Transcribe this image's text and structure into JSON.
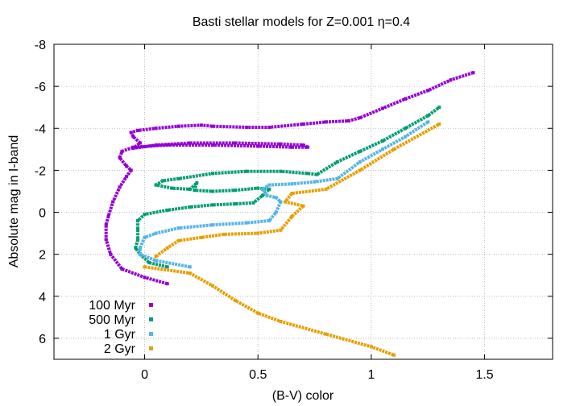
{
  "chart_data": {
    "type": "scatter",
    "title": "Basti stellar models for Z=0.001 η=0.4",
    "xlabel": "(B-V) color",
    "ylabel": "Absolute mag in I-band",
    "xlim": [
      -0.4,
      1.8
    ],
    "ylim": [
      7,
      -8
    ],
    "y_inverted": true,
    "grid": true,
    "legend_position": "bottom-left",
    "x_ticks": [
      "0",
      "0.5",
      "1",
      "1.5"
    ],
    "x_tick_values": [
      0,
      0.5,
      1,
      1.5
    ],
    "y_ticks": [
      "-8",
      "-6",
      "-4",
      "-2",
      "0",
      "2",
      "4",
      "6"
    ],
    "y_tick_values": [
      -8,
      -6,
      -4,
      -2,
      0,
      2,
      4,
      6
    ],
    "series": [
      {
        "name": "100 Myr",
        "color": "#9400d3",
        "segments": [
          [
            [
              0.1,
              3.4
            ],
            [
              0.0,
              3.1
            ],
            [
              -0.1,
              2.7
            ],
            [
              -0.15,
              2.0
            ],
            [
              -0.17,
              1.3
            ],
            [
              -0.17,
              0.6
            ],
            [
              -0.16,
              0.2
            ],
            [
              -0.14,
              -0.5
            ],
            [
              -0.11,
              -1.2
            ],
            [
              -0.08,
              -1.7
            ],
            [
              -0.06,
              -2.0
            ],
            [
              -0.08,
              -2.2
            ],
            [
              -0.11,
              -2.6
            ],
            [
              -0.1,
              -2.9
            ],
            [
              -0.05,
              -3.1
            ],
            [
              0.1,
              -3.2
            ],
            [
              0.3,
              -3.2
            ],
            [
              0.5,
              -3.15
            ],
            [
              0.65,
              -3.1
            ],
            [
              0.72,
              -3.1
            ],
            [
              0.7,
              -3.2
            ],
            [
              0.6,
              -3.25
            ],
            [
              0.4,
              -3.3
            ],
            [
              0.2,
              -3.3
            ],
            [
              0.05,
              -3.2
            ],
            [
              -0.05,
              -3.05
            ],
            [
              -0.02,
              -3.3
            ],
            [
              -0.05,
              -3.6
            ],
            [
              -0.06,
              -3.8
            ],
            [
              -0.03,
              -3.9
            ],
            [
              0.05,
              -4.0
            ],
            [
              0.15,
              -4.1
            ],
            [
              0.25,
              -4.15
            ],
            [
              0.3,
              -4.1
            ],
            [
              0.45,
              -4.05
            ],
            [
              0.55,
              -4.05
            ],
            [
              0.7,
              -4.2
            ],
            [
              0.8,
              -4.3
            ],
            [
              0.9,
              -4.35
            ],
            [
              0.95,
              -4.5
            ],
            [
              1.05,
              -4.95
            ],
            [
              1.15,
              -5.4
            ],
            [
              1.25,
              -5.8
            ],
            [
              1.35,
              -6.3
            ],
            [
              1.45,
              -6.65
            ]
          ]
        ]
      },
      {
        "name": "500 Myr",
        "color": "#009e73",
        "segments": [
          [
            [
              0.1,
              2.6
            ],
            [
              0.02,
              2.4
            ],
            [
              -0.02,
              2.0
            ],
            [
              -0.04,
              1.7
            ],
            [
              -0.03,
              1.3
            ],
            [
              -0.03,
              0.8
            ],
            [
              -0.03,
              0.4
            ],
            [
              0.0,
              0.1
            ],
            [
              0.1,
              -0.1
            ],
            [
              0.2,
              -0.25
            ],
            [
              0.3,
              -0.35
            ],
            [
              0.4,
              -0.4
            ],
            [
              0.48,
              -0.45
            ],
            [
              0.52,
              -0.8
            ],
            [
              0.55,
              -1.1
            ],
            [
              0.5,
              -1.15
            ],
            [
              0.4,
              -1.05
            ],
            [
              0.3,
              -1.0
            ],
            [
              0.22,
              -1.05
            ],
            [
              0.23,
              -1.4
            ],
            [
              0.2,
              -1.1
            ],
            [
              0.12,
              -1.15
            ],
            [
              0.05,
              -1.3
            ],
            [
              0.08,
              -1.5
            ],
            [
              0.15,
              -1.6
            ],
            [
              0.3,
              -1.85
            ],
            [
              0.45,
              -1.95
            ],
            [
              0.6,
              -1.95
            ],
            [
              0.72,
              -1.85
            ],
            [
              0.76,
              -1.8
            ],
            [
              0.85,
              -2.4
            ],
            [
              0.95,
              -2.9
            ],
            [
              1.05,
              -3.4
            ],
            [
              1.15,
              -4.0
            ],
            [
              1.25,
              -4.6
            ],
            [
              1.3,
              -5.0
            ]
          ]
        ]
      },
      {
        "name": "1 Gyr",
        "color": "#56b4e9",
        "segments": [
          [
            [
              0.2,
              2.6
            ],
            [
              0.05,
              2.3
            ],
            [
              -0.02,
              2.0
            ],
            [
              -0.02,
              1.7
            ],
            [
              0.0,
              1.2
            ],
            [
              0.05,
              1.0
            ],
            [
              0.15,
              0.75
            ],
            [
              0.3,
              0.6
            ],
            [
              0.45,
              0.5
            ],
            [
              0.55,
              0.4
            ],
            [
              0.58,
              0.0
            ],
            [
              0.6,
              -0.5
            ],
            [
              0.58,
              -0.7
            ],
            [
              0.54,
              -0.8
            ],
            [
              0.52,
              -1.1
            ],
            [
              0.55,
              -1.3
            ],
            [
              0.65,
              -1.35
            ],
            [
              0.75,
              -1.45
            ],
            [
              0.85,
              -1.6
            ],
            [
              0.95,
              -2.4
            ],
            [
              1.05,
              -3.0
            ],
            [
              1.15,
              -3.6
            ],
            [
              1.25,
              -4.3
            ]
          ]
        ]
      },
      {
        "name": "2 Gyr",
        "color": "#e69f00",
        "segments": [
          [
            [
              0.05,
              2.1
            ],
            [
              0.1,
              1.7
            ],
            [
              0.15,
              1.35
            ],
            [
              0.25,
              1.2
            ],
            [
              0.35,
              1.05
            ],
            [
              0.5,
              1.0
            ],
            [
              0.6,
              0.85
            ],
            [
              0.65,
              0.2
            ],
            [
              0.7,
              -0.3
            ],
            [
              0.62,
              -0.5
            ],
            [
              0.65,
              -0.9
            ],
            [
              0.8,
              -1.1
            ],
            [
              0.95,
              -2.0
            ],
            [
              1.1,
              -3.0
            ],
            [
              1.3,
              -4.2
            ]
          ],
          [
            [
              0.0,
              2.6
            ],
            [
              0.2,
              2.9
            ],
            [
              0.3,
              3.5
            ],
            [
              0.4,
              4.2
            ],
            [
              0.5,
              4.8
            ],
            [
              0.6,
              5.2
            ],
            [
              0.8,
              5.8
            ],
            [
              1.0,
              6.4
            ],
            [
              1.1,
              6.8
            ]
          ]
        ]
      }
    ]
  }
}
